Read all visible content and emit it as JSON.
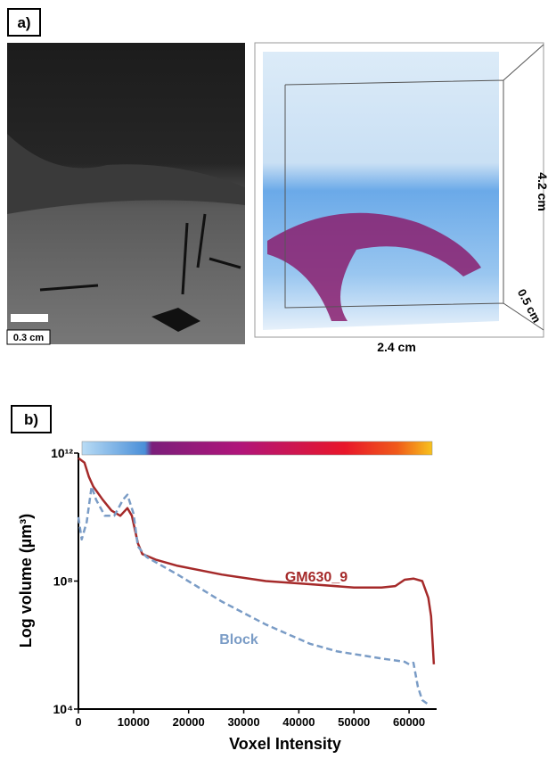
{
  "panel_a": {
    "label": "a)",
    "scale_bar": "0.3 cm",
    "dim_x": "2.4 cm",
    "dim_y": "4.2 cm",
    "dim_z": "0.5 cm"
  },
  "chart_data": {
    "type": "line",
    "label": "b)",
    "xlabel": "Voxel Intensity",
    "ylabel": "Log volume (µm³)",
    "log_y": true,
    "xlim": [
      0,
      65000
    ],
    "ylim": [
      10000,
      1000000000000
    ],
    "xticks": [
      0,
      10000,
      20000,
      30000,
      40000,
      50000,
      60000
    ],
    "yticks": [
      {
        "value": 10000,
        "label": "10⁴"
      },
      {
        "value": 100000000,
        "label": "10⁸"
      },
      {
        "value": 1000000000000,
        "label": "10¹²"
      }
    ],
    "series": [
      {
        "name": "GM630_9",
        "color": "#a52a2a",
        "dashed": false,
        "x": [
          0,
          1100,
          1900,
          2700,
          4400,
          6000,
          7600,
          8900,
          9700,
          10800,
          11600,
          14000,
          18000,
          26000,
          34000,
          42000,
          50000,
          55000,
          57500,
          59200,
          60800,
          62400,
          63500,
          64000,
          64500
        ],
        "values": [
          700000000000,
          500000000000,
          180000000000,
          90000000000,
          35000000000,
          16000000000,
          11000000000,
          19000000000,
          11000000000,
          1500000000,
          700000000,
          470000000,
          300000000,
          160000000,
          100000000,
          80000000,
          63000000,
          63000000,
          70000000,
          110000000,
          120000000,
          100000000,
          30000000,
          8000000,
          250000
        ]
      },
      {
        "name": "Block",
        "color": "#7a9cc6",
        "dashed": true,
        "x": [
          0,
          600,
          1500,
          2400,
          3200,
          4800,
          6500,
          8100,
          8900,
          10000,
          10800,
          12400,
          18000,
          26000,
          34000,
          42000,
          47000,
          55000,
          59200,
          60000,
          60800,
          61600,
          62400,
          63500
        ],
        "values": [
          10000000000,
          2000000000,
          7000000000,
          90000000000,
          35000000000,
          11000000000,
          11000000000,
          35000000000,
          50000000000,
          13000000000,
          1200000000,
          560000000,
          160000000,
          23000000,
          4400000,
          1100000,
          630000,
          380000,
          300000,
          250000,
          280000,
          49000,
          19000,
          14000
        ]
      }
    ]
  }
}
